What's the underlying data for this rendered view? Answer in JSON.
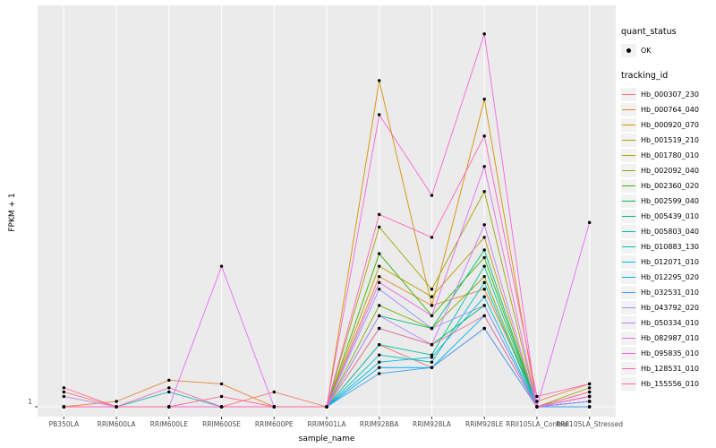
{
  "chart": {
    "xlabel": "sample_name",
    "ylabel": "FPKM + 1",
    "y_tick_labels": [
      "1"
    ],
    "panel_bg": "#EBEBEB",
    "grid_color": "#FFFFFF",
    "legend": {
      "quant_status_title": "quant_status",
      "quant_status_items": [
        "OK"
      ],
      "tracking_id_title": "tracking_id"
    }
  },
  "chart_data": {
    "type": "line",
    "x_axis": "sample_name",
    "y_axis": "FPKM + 1",
    "y_scale": "log10",
    "ylim": [
      1,
      1000
    ],
    "point_color": "#000000",
    "categories": [
      "PB350LA",
      "RRIM600LA",
      "RRIM600LE",
      "RRIM600SE",
      "RRIM600PE",
      "RRIM901LA",
      "RRIM928BA",
      "RRIM928LA",
      "RRIM928LE",
      "RRII105LA_Control",
      "RRII105LA_Stressed"
    ],
    "series": [
      {
        "name": "Hb_000307_230",
        "color": "#F8766D",
        "values": [
          1.3,
          1,
          1,
          1,
          1.3,
          1,
          3,
          2,
          4,
          1,
          1.3
        ]
      },
      {
        "name": "Hb_000764_040",
        "color": "#EA8331",
        "values": [
          1,
          1.1,
          1.6,
          1.5,
          1,
          1,
          10,
          6,
          8,
          1.1,
          1.5
        ]
      },
      {
        "name": "Hb_000920_070",
        "color": "#D89000",
        "values": [
          1,
          1,
          1,
          1,
          1,
          1,
          320,
          6,
          230,
          1,
          1.2
        ]
      },
      {
        "name": "Hb_001519_210",
        "color": "#C09B00",
        "values": [
          1,
          1,
          1,
          1,
          1,
          1,
          12,
          7,
          20,
          1,
          1.1
        ]
      },
      {
        "name": "Hb_001780_010",
        "color": "#A3A500",
        "values": [
          1,
          1,
          1,
          1,
          1,
          1,
          24,
          8,
          45,
          1,
          1.4
        ]
      },
      {
        "name": "Hb_002092_040",
        "color": "#7CAE00",
        "values": [
          1,
          1,
          1,
          1,
          1,
          1,
          6,
          4,
          10,
          1,
          1.2
        ]
      },
      {
        "name": "Hb_002360_020",
        "color": "#39B600",
        "values": [
          1,
          1,
          1,
          1,
          1,
          1,
          15,
          5,
          14,
          1,
          1.1
        ]
      },
      {
        "name": "Hb_002599_040",
        "color": "#00BB4E",
        "values": [
          1,
          1,
          1,
          1,
          1,
          1,
          4,
          3,
          6,
          1,
          1
        ]
      },
      {
        "name": "Hb_005439_010",
        "color": "#00BF7D",
        "values": [
          1,
          1,
          1,
          1,
          1,
          1,
          5,
          4,
          16,
          1,
          1.1
        ]
      },
      {
        "name": "Hb_005803_040",
        "color": "#00C1A3",
        "values": [
          1,
          1,
          1.3,
          1,
          1,
          1,
          3,
          2.5,
          12,
          1,
          1
        ]
      },
      {
        "name": "Hb_010883_130",
        "color": "#00BFC4",
        "values": [
          1,
          1,
          1,
          1,
          1,
          1,
          2.5,
          2.2,
          9,
          1,
          1.1
        ]
      },
      {
        "name": "Hb_012071_010",
        "color": "#00BAE0",
        "values": [
          1,
          1,
          1,
          1,
          1,
          1,
          2.2,
          2.4,
          7,
          1,
          1
        ]
      },
      {
        "name": "Hb_012295_020",
        "color": "#00B0F6",
        "values": [
          1,
          1,
          1,
          1,
          1,
          1,
          2,
          2,
          5,
          1,
          1.1
        ]
      },
      {
        "name": "Hb_032531_010",
        "color": "#35A2FF",
        "values": [
          1,
          1,
          1,
          1,
          1,
          1,
          1.8,
          2,
          4,
          1,
          1
        ]
      },
      {
        "name": "Hb_043792_020",
        "color": "#9590FF",
        "values": [
          1,
          1,
          1,
          1,
          1,
          1,
          8,
          4,
          6,
          1,
          1.2
        ]
      },
      {
        "name": "Hb_050334_010",
        "color": "#C77CFF",
        "values": [
          1.2,
          1,
          1,
          1,
          1,
          1,
          5,
          3,
          25,
          1,
          1.1
        ]
      },
      {
        "name": "Hb_082987_010",
        "color": "#E76BF3",
        "values": [
          1,
          1,
          1,
          12,
          1,
          1,
          9,
          5,
          70,
          1,
          26
        ]
      },
      {
        "name": "Hb_095835_010",
        "color": "#FA62DB",
        "values": [
          1,
          1,
          1,
          1,
          1,
          1,
          175,
          42,
          730,
          1,
          1.2
        ]
      },
      {
        "name": "Hb_128531_010",
        "color": "#FF62BC",
        "values": [
          1,
          1,
          1.4,
          1,
          1,
          1,
          30,
          20,
          120,
          1.2,
          1.5
        ]
      },
      {
        "name": "Hb_155556_010",
        "color": "#FF6A98",
        "values": [
          1.4,
          1,
          1,
          1.2,
          1,
          1,
          4,
          3,
          5,
          1,
          1.3
        ]
      }
    ]
  }
}
